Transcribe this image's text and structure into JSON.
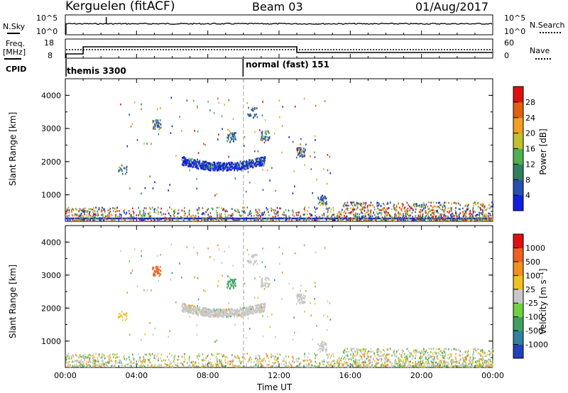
{
  "header": {
    "station": "Kerguelen (fitACF)",
    "beam": "Beam 03",
    "date": "01/Aug/2017"
  },
  "noise_panel": {
    "left_label": "N.Sky",
    "left_top_tick": "10^5",
    "left_bottom_tick": "10^0",
    "right_label": "N.Search",
    "right_top_tick": "10^5",
    "right_bottom_tick": "10^0"
  },
  "freq_panel": {
    "left_label_1": "Freq.",
    "left_label_2": "[MHz]",
    "left_top_tick": "18",
    "left_bottom_tick": "8",
    "right_label": "Nave",
    "right_top_tick": "60",
    "right_bottom_tick": "0"
  },
  "cpid_panel": {
    "label": "CPID",
    "modes": [
      {
        "name": "themis 3300",
        "start_hour": 0
      },
      {
        "name": "normal (fast) 151",
        "start_hour": 10
      }
    ]
  },
  "x_axis": {
    "label": "Time UT",
    "ticks": [
      "00:00",
      "04:00",
      "08:00",
      "12:00",
      "16:00",
      "20:00",
      "00:00"
    ]
  },
  "chart_data": [
    {
      "type": "heatmap",
      "name": "power",
      "ylabel": "Slant Range [km]",
      "yticks": [
        "1000",
        "2000",
        "3000",
        "4000"
      ],
      "ylim": [
        200,
        4500
      ],
      "xlim": [
        0,
        24
      ],
      "colorbar": {
        "label": "Power [dB]",
        "ticks": [
          "4",
          "8",
          "12",
          "16",
          "20",
          "24",
          "28"
        ],
        "colors": [
          "#1020e0",
          "#2850b0",
          "#308060",
          "#50b050",
          "#c0c030",
          "#f0a020",
          "#e06010",
          "#e01010"
        ]
      }
    },
    {
      "type": "heatmap",
      "name": "velocity",
      "ylabel": "Slant Range [km]",
      "yticks": [
        "1000",
        "2000",
        "3000",
        "4000"
      ],
      "ylim": [
        200,
        4500
      ],
      "xlim": [
        0,
        24
      ],
      "colorbar": {
        "label": "Velocity [m s⁻¹]",
        "ticks": [
          "1000",
          "500",
          "100",
          "25",
          "-25",
          "-100",
          "-500",
          "-1000"
        ],
        "colors": [
          "#2040c0",
          "#3080a0",
          "#40a060",
          "#70d040",
          "#c8c8c8",
          "#f0c020",
          "#f09020",
          "#f06020",
          "#e01010"
        ]
      }
    }
  ]
}
